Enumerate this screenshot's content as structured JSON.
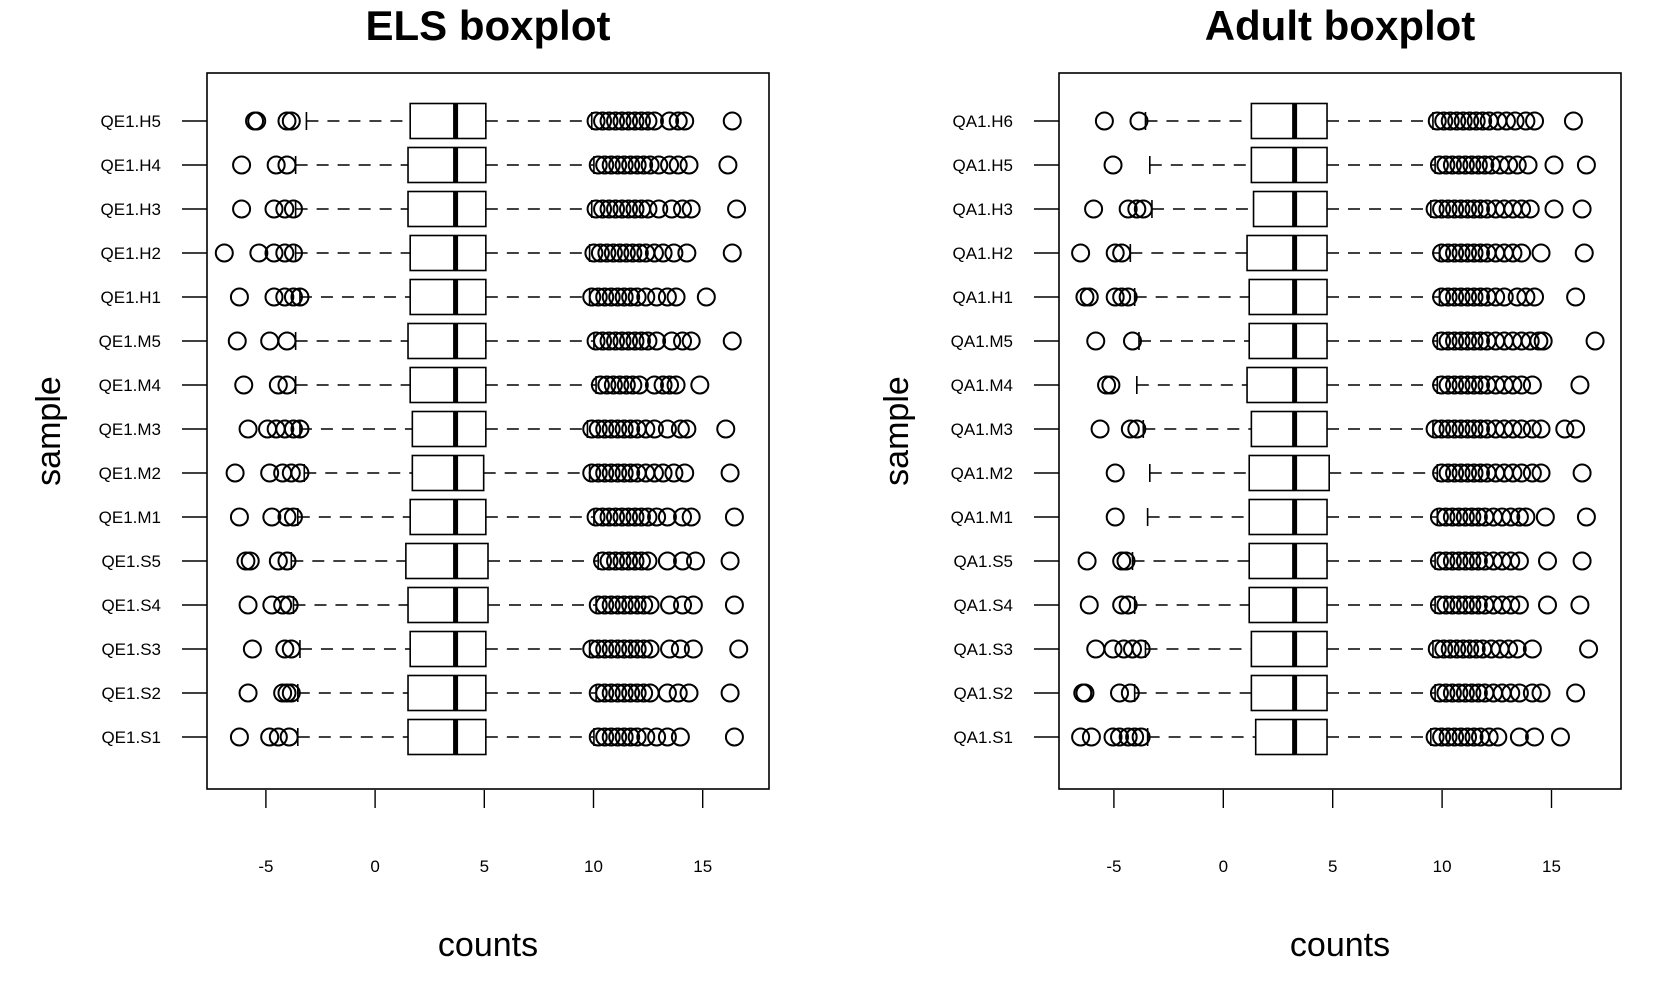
{
  "chart_data": [
    {
      "type": "boxplot",
      "title": "ELS boxplot",
      "xlabel": "counts",
      "ylabel": "sample",
      "xlim": [
        -7.5,
        18.5
      ],
      "xticks": [
        -5,
        0,
        5,
        10,
        15
      ],
      "xtick_labels": [
        "-5",
        "0",
        "5",
        "10",
        "15"
      ],
      "orientation": "horizontal",
      "categories": [
        "QE1.H5",
        "QE1.H4",
        "QE1.H3",
        "QE1.H2",
        "QE1.H1",
        "QE1.M5",
        "QE1.M4",
        "QE1.M3",
        "QE1.M2",
        "QE1.M1",
        "QE1.S5",
        "QE1.S4",
        "QE1.S3",
        "QE1.S2",
        "QE1.S1"
      ],
      "boxes": [
        {
          "sample": "QE1.H5",
          "q1": 1.9,
          "median": 4.0,
          "q3": 5.4,
          "whisker_low": -2.9,
          "whisker_high": 10.3,
          "outliers": [
            -5.3,
            -5.2,
            -3.8,
            -3.6,
            10.5,
            10.8,
            11.1,
            11.4,
            11.7,
            12.0,
            12.3,
            12.6,
            12.9,
            13.2,
            13.9,
            14.3,
            14.6,
            16.8
          ]
        },
        {
          "sample": "QE1.H4",
          "q1": 1.8,
          "median": 4.0,
          "q3": 5.4,
          "whisker_low": -3.4,
          "whisker_high": 10.4,
          "outliers": [
            -5.9,
            -4.3,
            -3.8,
            10.6,
            10.9,
            11.2,
            11.5,
            11.8,
            12.1,
            12.4,
            12.7,
            13.0,
            13.4,
            13.9,
            14.3,
            14.8,
            16.6
          ]
        },
        {
          "sample": "QE1.H3",
          "q1": 1.8,
          "median": 4.0,
          "q3": 5.4,
          "whisker_low": -3.4,
          "whisker_high": 10.3,
          "outliers": [
            -5.9,
            -4.4,
            -3.9,
            -3.5,
            10.5,
            10.8,
            11.1,
            11.4,
            11.7,
            12.0,
            12.3,
            12.6,
            12.9,
            13.4,
            14.0,
            14.5,
            14.9,
            17.0
          ]
        },
        {
          "sample": "QE1.H2",
          "q1": 1.9,
          "median": 4.0,
          "q3": 5.4,
          "whisker_low": -3.4,
          "whisker_high": 10.2,
          "outliers": [
            -6.7,
            -5.1,
            -4.4,
            -3.9,
            -3.5,
            10.4,
            10.7,
            11.0,
            11.3,
            11.6,
            11.9,
            12.2,
            12.5,
            12.8,
            13.2,
            13.6,
            14.1,
            14.7,
            16.8
          ]
        },
        {
          "sample": "QE1.H1",
          "q1": 1.9,
          "median": 4.0,
          "q3": 5.4,
          "whisker_low": -3.2,
          "whisker_high": 10.2,
          "outliers": [
            -6.0,
            -4.4,
            -3.9,
            -3.5,
            -3.2,
            10.3,
            10.6,
            10.9,
            11.2,
            11.5,
            11.8,
            12.1,
            12.4,
            12.8,
            13.3,
            13.8,
            14.2,
            15.6
          ]
        },
        {
          "sample": "QE1.M5",
          "q1": 1.8,
          "median": 4.0,
          "q3": 5.4,
          "whisker_low": -3.4,
          "whisker_high": 10.4,
          "outliers": [
            -6.1,
            -4.6,
            -3.8,
            10.5,
            10.8,
            11.1,
            11.4,
            11.7,
            12.0,
            12.3,
            12.6,
            12.9,
            13.3,
            14.0,
            14.5,
            14.9,
            16.8
          ]
        },
        {
          "sample": "QE1.M4",
          "q1": 1.9,
          "median": 4.0,
          "q3": 5.4,
          "whisker_low": -3.4,
          "whisker_high": 10.5,
          "outliers": [
            -5.8,
            -4.2,
            -3.8,
            10.7,
            11.0,
            11.3,
            11.6,
            11.9,
            12.2,
            12.5,
            13.2,
            13.6,
            13.9,
            14.2,
            15.3
          ]
        },
        {
          "sample": "QE1.M3",
          "q1": 2.0,
          "median": 4.0,
          "q3": 5.4,
          "whisker_low": -3.2,
          "whisker_high": 10.1,
          "outliers": [
            -5.6,
            -4.7,
            -4.3,
            -3.9,
            -3.5,
            -3.2,
            10.3,
            10.6,
            10.9,
            11.2,
            11.5,
            11.8,
            12.1,
            12.4,
            12.8,
            13.2,
            13.8,
            14.4,
            14.7,
            16.5
          ]
        },
        {
          "sample": "QE1.M2",
          "q1": 2.0,
          "median": 4.0,
          "q3": 5.3,
          "whisker_low": -3.0,
          "whisker_high": 10.2,
          "outliers": [
            -6.2,
            -4.6,
            -4.0,
            -3.6,
            -3.2,
            10.3,
            10.6,
            10.9,
            11.2,
            11.5,
            11.8,
            12.1,
            12.4,
            12.8,
            13.2,
            13.6,
            14.1,
            14.6,
            16.7
          ]
        },
        {
          "sample": "QE1.M1",
          "q1": 1.9,
          "median": 4.0,
          "q3": 5.4,
          "whisker_low": -3.3,
          "whisker_high": 10.4,
          "outliers": [
            -6.0,
            -4.5,
            -3.8,
            -3.5,
            10.5,
            10.8,
            11.1,
            11.4,
            11.7,
            12.0,
            12.3,
            12.6,
            12.9,
            13.3,
            13.8,
            14.5,
            14.9,
            16.9
          ]
        },
        {
          "sample": "QE1.S5",
          "q1": 1.7,
          "median": 4.0,
          "q3": 5.5,
          "whisker_low": -3.6,
          "whisker_high": 10.6,
          "outliers": [
            -5.7,
            -5.5,
            -4.2,
            -3.8,
            10.8,
            11.1,
            11.4,
            11.7,
            12.0,
            12.3,
            12.6,
            12.9,
            13.8,
            14.5,
            15.1,
            16.7
          ]
        },
        {
          "sample": "QE1.S4",
          "q1": 1.8,
          "median": 4.0,
          "q3": 5.5,
          "whisker_low": -3.5,
          "whisker_high": 10.5,
          "outliers": [
            -5.6,
            -4.5,
            -4.0,
            -3.7,
            10.6,
            10.9,
            11.2,
            11.5,
            11.8,
            12.1,
            12.4,
            12.7,
            13.0,
            13.9,
            14.5,
            15.0,
            16.9
          ]
        },
        {
          "sample": "QE1.S3",
          "q1": 1.9,
          "median": 4.0,
          "q3": 5.4,
          "whisker_low": -3.2,
          "whisker_high": 10.2,
          "outliers": [
            -5.4,
            -3.9,
            -3.6,
            10.3,
            10.6,
            10.9,
            11.2,
            11.5,
            11.8,
            12.1,
            12.4,
            12.7,
            13.0,
            13.9,
            14.4,
            15.0,
            17.1
          ]
        },
        {
          "sample": "QE1.S2",
          "q1": 1.8,
          "median": 4.0,
          "q3": 5.4,
          "whisker_low": -3.3,
          "whisker_high": 10.5,
          "outliers": [
            -5.6,
            -4.0,
            -3.8,
            -3.6,
            10.6,
            10.9,
            11.2,
            11.5,
            11.8,
            12.1,
            12.4,
            12.7,
            13.0,
            13.8,
            14.3,
            14.8,
            16.7
          ]
        },
        {
          "sample": "QE1.S1",
          "q1": 1.8,
          "median": 4.0,
          "q3": 5.4,
          "whisker_low": -3.3,
          "whisker_high": 10.4,
          "outliers": [
            -6.0,
            -4.6,
            -4.2,
            -3.7,
            10.6,
            10.9,
            11.2,
            11.5,
            11.8,
            12.1,
            12.4,
            12.8,
            13.3,
            13.8,
            14.4,
            16.9
          ]
        }
      ]
    },
    {
      "type": "boxplot",
      "title": "Adult boxplot",
      "xlabel": "counts",
      "ylabel": "sample",
      "xlim": [
        -7.5,
        18.5
      ],
      "xticks": [
        -5,
        0,
        5,
        10,
        15
      ],
      "xtick_labels": [
        "-5",
        "0",
        "5",
        "10",
        "15"
      ],
      "orientation": "horizontal",
      "categories": [
        "QA1.H6",
        "QA1.H5",
        "QA1.H3",
        "QA1.H2",
        "QA1.H1",
        "QA1.M5",
        "QA1.M4",
        "QA1.M3",
        "QA1.M2",
        "QA1.M1",
        "QA1.S5",
        "QA1.S4",
        "QA1.S3",
        "QA1.S2",
        "QA1.S1"
      ],
      "boxes": [
        {
          "sample": "QA1.H6",
          "q1": 1.4,
          "median": 3.4,
          "q3": 4.9,
          "whisker_low": -3.5,
          "whisker_high": 9.8,
          "outliers": [
            -5.4,
            -3.8,
            10.0,
            10.3,
            10.6,
            10.9,
            11.2,
            11.5,
            11.8,
            12.1,
            12.4,
            12.8,
            13.2,
            13.6,
            14.1,
            14.5,
            16.3
          ]
        },
        {
          "sample": "QA1.H5",
          "q1": 1.4,
          "median": 3.4,
          "q3": 4.9,
          "whisker_low": -3.3,
          "whisker_high": 9.9,
          "outliers": [
            -5.0,
            10.1,
            10.4,
            10.7,
            11.0,
            11.3,
            11.6,
            11.9,
            12.2,
            12.5,
            12.9,
            13.3,
            13.7,
            14.2,
            15.4,
            16.9
          ]
        },
        {
          "sample": "QA1.H3",
          "q1": 1.5,
          "median": 3.4,
          "q3": 4.9,
          "whisker_low": -3.2,
          "whisker_high": 9.7,
          "outliers": [
            -5.9,
            -4.3,
            -3.9,
            -3.6,
            9.9,
            10.2,
            10.5,
            10.8,
            11.1,
            11.4,
            11.7,
            12.0,
            12.3,
            12.7,
            13.1,
            13.5,
            13.9,
            14.3,
            15.4,
            16.7
          ]
        },
        {
          "sample": "QA1.H2",
          "q1": 1.2,
          "median": 3.4,
          "q3": 4.9,
          "whisker_low": -4.2,
          "whisker_high": 10.1,
          "outliers": [
            -6.5,
            -4.9,
            -4.6,
            10.2,
            10.5,
            10.8,
            11.1,
            11.4,
            11.7,
            12.0,
            12.3,
            12.7,
            13.1,
            13.5,
            13.9,
            14.8,
            16.8
          ]
        },
        {
          "sample": "QA1.H1",
          "q1": 1.3,
          "median": 3.4,
          "q3": 4.9,
          "whisker_low": -4.0,
          "whisker_high": 10.1,
          "outliers": [
            -6.3,
            -6.1,
            -4.9,
            -4.6,
            -4.3,
            10.2,
            10.5,
            10.8,
            11.1,
            11.4,
            11.7,
            12.0,
            12.3,
            12.7,
            13.1,
            13.7,
            14.1,
            14.5,
            16.4
          ]
        },
        {
          "sample": "QA1.M5",
          "q1": 1.3,
          "median": 3.4,
          "q3": 4.9,
          "whisker_low": -3.8,
          "whisker_high": 10.0,
          "outliers": [
            -5.8,
            -4.1,
            10.2,
            10.5,
            10.8,
            11.1,
            11.4,
            11.7,
            12.0,
            12.3,
            12.7,
            13.1,
            13.5,
            13.9,
            14.3,
            14.7,
            14.9,
            17.3
          ]
        },
        {
          "sample": "QA1.M4",
          "q1": 1.2,
          "median": 3.4,
          "q3": 4.9,
          "whisker_low": -3.9,
          "whisker_high": 10.0,
          "outliers": [
            -5.3,
            -5.1,
            10.2,
            10.5,
            10.8,
            11.1,
            11.4,
            11.7,
            12.0,
            12.3,
            12.7,
            13.1,
            13.5,
            13.9,
            14.4,
            16.6
          ]
        },
        {
          "sample": "QA1.M3",
          "q1": 1.4,
          "median": 3.4,
          "q3": 4.9,
          "whisker_low": -3.6,
          "whisker_high": 9.8,
          "outliers": [
            -5.6,
            -4.2,
            -3.9,
            9.9,
            10.2,
            10.5,
            10.8,
            11.1,
            11.4,
            11.7,
            12.0,
            12.3,
            12.7,
            13.1,
            13.5,
            13.9,
            14.4,
            14.8,
            15.9,
            16.4
          ]
        },
        {
          "sample": "QA1.M2",
          "q1": 1.3,
          "median": 3.4,
          "q3": 5.0,
          "whisker_low": -3.3,
          "whisker_high": 10.0,
          "outliers": [
            -4.9,
            10.2,
            10.5,
            10.8,
            11.1,
            11.4,
            11.7,
            12.0,
            12.3,
            12.7,
            13.1,
            13.5,
            13.9,
            14.4,
            14.8,
            16.7
          ]
        },
        {
          "sample": "QA1.M1",
          "q1": 1.3,
          "median": 3.4,
          "q3": 4.9,
          "whisker_low": -3.4,
          "whisker_high": 10.0,
          "outliers": [
            -4.9,
            10.1,
            10.4,
            10.7,
            11.0,
            11.3,
            11.6,
            11.9,
            12.2,
            12.6,
            13.0,
            13.4,
            13.8,
            14.1,
            15.0,
            16.9
          ]
        },
        {
          "sample": "QA1.S5",
          "q1": 1.3,
          "median": 3.4,
          "q3": 4.9,
          "whisker_low": -4.1,
          "whisker_high": 9.9,
          "outliers": [
            -6.2,
            -4.6,
            -4.4,
            10.1,
            10.4,
            10.7,
            11.0,
            11.3,
            11.6,
            11.9,
            12.2,
            12.6,
            13.0,
            13.4,
            13.8,
            15.1,
            16.7
          ]
        },
        {
          "sample": "QA1.S4",
          "q1": 1.3,
          "median": 3.4,
          "q3": 4.9,
          "whisker_low": -4.0,
          "whisker_high": 9.9,
          "outliers": [
            -6.1,
            -4.6,
            -4.3,
            10.1,
            10.4,
            10.7,
            11.0,
            11.3,
            11.6,
            11.9,
            12.2,
            12.6,
            13.0,
            13.4,
            13.8,
            15.1,
            16.6
          ]
        },
        {
          "sample": "QA1.S3",
          "q1": 1.4,
          "median": 3.4,
          "q3": 4.9,
          "whisker_low": -3.5,
          "whisker_high": 9.8,
          "outliers": [
            -5.8,
            -5.0,
            -4.5,
            -4.1,
            -3.7,
            10.0,
            10.3,
            10.6,
            10.9,
            11.2,
            11.5,
            11.8,
            12.1,
            12.5,
            12.9,
            13.3,
            13.7,
            14.4,
            17.0
          ]
        },
        {
          "sample": "QA1.S2",
          "q1": 1.4,
          "median": 3.4,
          "q3": 4.9,
          "whisker_low": -4.0,
          "whisker_high": 9.9,
          "outliers": [
            -6.4,
            -6.3,
            -4.7,
            -4.2,
            10.1,
            10.4,
            10.7,
            11.0,
            11.3,
            11.6,
            11.9,
            12.2,
            12.6,
            13.0,
            13.4,
            13.8,
            14.4,
            14.8,
            16.4
          ]
        },
        {
          "sample": "QA1.S1",
          "q1": 1.6,
          "median": 3.4,
          "q3": 4.9,
          "whisker_low": -3.4,
          "whisker_high": 9.7,
          "outliers": [
            -6.5,
            -6.0,
            -5.0,
            -4.7,
            -4.3,
            -4.0,
            -3.7,
            9.9,
            10.2,
            10.5,
            10.8,
            11.1,
            11.4,
            11.7,
            12.0,
            12.4,
            12.8,
            13.8,
            14.5,
            15.7
          ]
        }
      ]
    }
  ]
}
